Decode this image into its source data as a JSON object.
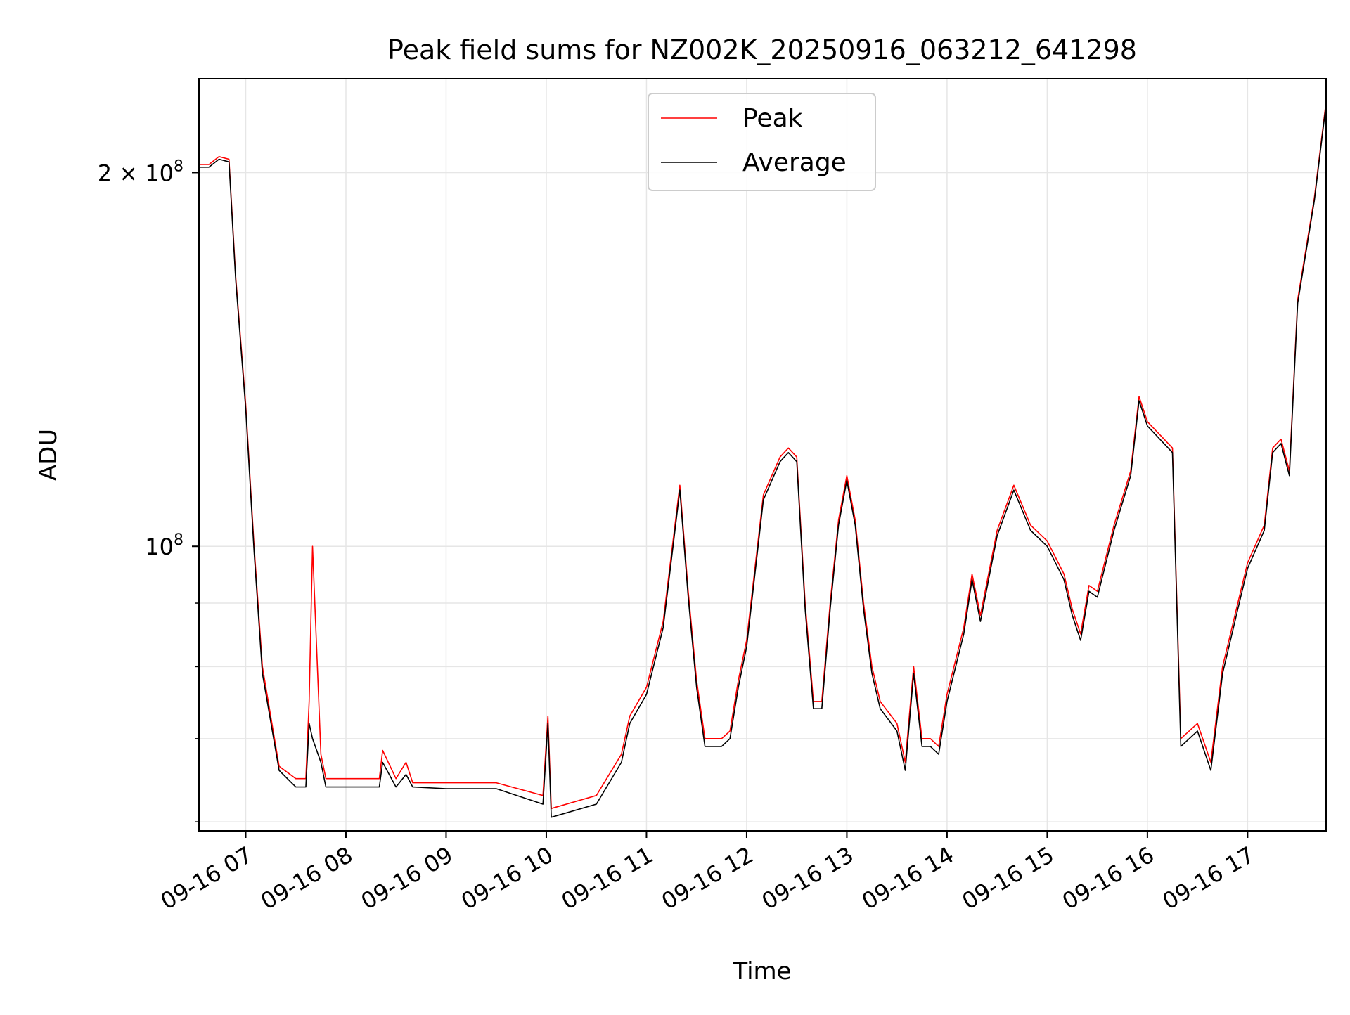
{
  "chart_data": {
    "type": "line",
    "title": "Peak field sums for NZ002K_20250916_063212_641298",
    "xlabel": "Time",
    "ylabel": "ADU",
    "y_scale": "log",
    "ylim": [
      59000000,
      238000000
    ],
    "xlim": [
      "2025-09-16 06:32",
      "2025-09-16 17:47"
    ],
    "grid": true,
    "legend_position": "top-center",
    "x_ticks": [
      {
        "value": "2025-09-16 07:00",
        "label": "09-16 07"
      },
      {
        "value": "2025-09-16 08:00",
        "label": "09-16 08"
      },
      {
        "value": "2025-09-16 09:00",
        "label": "09-16 09"
      },
      {
        "value": "2025-09-16 10:00",
        "label": "09-16 10"
      },
      {
        "value": "2025-09-16 11:00",
        "label": "09-16 11"
      },
      {
        "value": "2025-09-16 12:00",
        "label": "09-16 12"
      },
      {
        "value": "2025-09-16 13:00",
        "label": "09-16 13"
      },
      {
        "value": "2025-09-16 14:00",
        "label": "09-16 14"
      },
      {
        "value": "2025-09-16 15:00",
        "label": "09-16 15"
      },
      {
        "value": "2025-09-16 16:00",
        "label": "09-16 16"
      },
      {
        "value": "2025-09-16 17:00",
        "label": "09-16 17"
      }
    ],
    "y_major_ticks": [
      {
        "value": 100000000,
        "label_base": "10",
        "label_exp": "8"
      },
      {
        "value": 200000000,
        "label_base": "2 × 10",
        "label_exp": "8"
      }
    ],
    "y_minor_ticks": [
      60000000,
      70000000,
      80000000,
      90000000
    ],
    "colors": {
      "Peak": "#ff0000",
      "Average": "#000000",
      "grid": "#e6e6e6"
    },
    "x": [
      "2025-09-16 06:32",
      "2025-09-16 06:38",
      "2025-09-16 06:44",
      "2025-09-16 06:50",
      "2025-09-16 06:54",
      "2025-09-16 07:00",
      "2025-09-16 07:05",
      "2025-09-16 07:10",
      "2025-09-16 07:20",
      "2025-09-16 07:30",
      "2025-09-16 07:36",
      "2025-09-16 07:38",
      "2025-09-16 07:40",
      "2025-09-16 07:45",
      "2025-09-16 07:48",
      "2025-09-16 08:00",
      "2025-09-16 08:20",
      "2025-09-16 08:22",
      "2025-09-16 08:30",
      "2025-09-16 08:36",
      "2025-09-16 08:40",
      "2025-09-16 09:00",
      "2025-09-16 09:30",
      "2025-09-16 09:58",
      "2025-09-16 10:01",
      "2025-09-16 10:03",
      "2025-09-16 10:30",
      "2025-09-16 10:45",
      "2025-09-16 10:50",
      "2025-09-16 11:00",
      "2025-09-16 11:10",
      "2025-09-16 11:20",
      "2025-09-16 11:25",
      "2025-09-16 11:30",
      "2025-09-16 11:35",
      "2025-09-16 11:40",
      "2025-09-16 11:45",
      "2025-09-16 11:50",
      "2025-09-16 11:55",
      "2025-09-16 12:00",
      "2025-09-16 12:10",
      "2025-09-16 12:20",
      "2025-09-16 12:25",
      "2025-09-16 12:30",
      "2025-09-16 12:35",
      "2025-09-16 12:40",
      "2025-09-16 12:45",
      "2025-09-16 12:50",
      "2025-09-16 12:55",
      "2025-09-16 13:00",
      "2025-09-16 13:05",
      "2025-09-16 13:10",
      "2025-09-16 13:15",
      "2025-09-16 13:20",
      "2025-09-16 13:30",
      "2025-09-16 13:35",
      "2025-09-16 13:40",
      "2025-09-16 13:45",
      "2025-09-16 13:50",
      "2025-09-16 13:55",
      "2025-09-16 14:00",
      "2025-09-16 14:10",
      "2025-09-16 14:15",
      "2025-09-16 14:20",
      "2025-09-16 14:30",
      "2025-09-16 14:40",
      "2025-09-16 14:50",
      "2025-09-16 15:00",
      "2025-09-16 15:10",
      "2025-09-16 15:15",
      "2025-09-16 15:20",
      "2025-09-16 15:25",
      "2025-09-16 15:30",
      "2025-09-16 15:40",
      "2025-09-16 15:50",
      "2025-09-16 15:55",
      "2025-09-16 16:00",
      "2025-09-16 16:15",
      "2025-09-16 16:20",
      "2025-09-16 16:30",
      "2025-09-16 16:38",
      "2025-09-16 16:45",
      "2025-09-16 16:55",
      "2025-09-16 17:00",
      "2025-09-16 17:10",
      "2025-09-16 17:15",
      "2025-09-16 17:20",
      "2025-09-16 17:25",
      "2025-09-16 17:30",
      "2025-09-16 17:40",
      "2025-09-16 17:47"
    ],
    "series": [
      {
        "name": "Peak",
        "values": [
          203000000,
          203000000,
          206000000,
          205000000,
          165000000,
          130000000,
          100000000,
          80000000,
          66500000,
          65000000,
          65000000,
          75000000,
          100000000,
          68000000,
          65000000,
          65000000,
          65000000,
          68500000,
          65000000,
          67000000,
          64500000,
          64500000,
          64500000,
          63000000,
          73000000,
          61500000,
          63000000,
          68000000,
          73000000,
          77000000,
          87000000,
          112000000,
          92000000,
          78000000,
          70000000,
          70000000,
          70000000,
          71000000,
          78000000,
          84000000,
          110000000,
          118000000,
          120000000,
          118000000,
          90000000,
          75000000,
          75000000,
          90000000,
          105000000,
          114000000,
          105000000,
          90000000,
          80000000,
          75000000,
          72000000,
          67000000,
          80000000,
          70000000,
          70000000,
          69000000,
          76000000,
          86000000,
          95000000,
          88000000,
          103000000,
          112000000,
          104000000,
          101000000,
          95000000,
          89000000,
          85000000,
          93000000,
          92000000,
          104000000,
          115000000,
          132000000,
          126000000,
          120000000,
          70000000,
          72000000,
          67000000,
          80000000,
          91000000,
          97000000,
          104000000,
          120000000,
          122000000,
          115000000,
          158000000,
          191000000,
          228000000
        ]
      },
      {
        "name": "Average",
        "values": [
          202000000,
          202000000,
          205000000,
          204000000,
          164000000,
          129000000,
          99000000,
          79000000,
          66000000,
          64000000,
          64000000,
          72000000,
          70000000,
          67000000,
          64000000,
          64000000,
          64000000,
          67000000,
          64000000,
          65500000,
          64000000,
          63800000,
          63800000,
          62000000,
          72000000,
          60500000,
          62000000,
          67000000,
          72000000,
          76000000,
          86000000,
          111000000,
          91000000,
          77000000,
          69000000,
          69000000,
          69000000,
          70000000,
          77000000,
          83000000,
          109000000,
          117000000,
          119000000,
          117000000,
          89000000,
          74000000,
          74000000,
          89000000,
          104000000,
          113000000,
          104000000,
          89000000,
          79000000,
          74000000,
          71000000,
          66000000,
          79000000,
          69000000,
          69000000,
          68000000,
          75000000,
          85000000,
          94000000,
          87000000,
          102000000,
          111000000,
          103000000,
          100000000,
          94000000,
          88000000,
          84000000,
          92000000,
          91000000,
          103000000,
          114000000,
          131000000,
          125000000,
          119000000,
          69000000,
          71000000,
          66000000,
          79000000,
          90000000,
          96000000,
          103000000,
          119000000,
          121000000,
          114000000,
          157000000,
          190000000,
          227000000
        ]
      }
    ]
  }
}
